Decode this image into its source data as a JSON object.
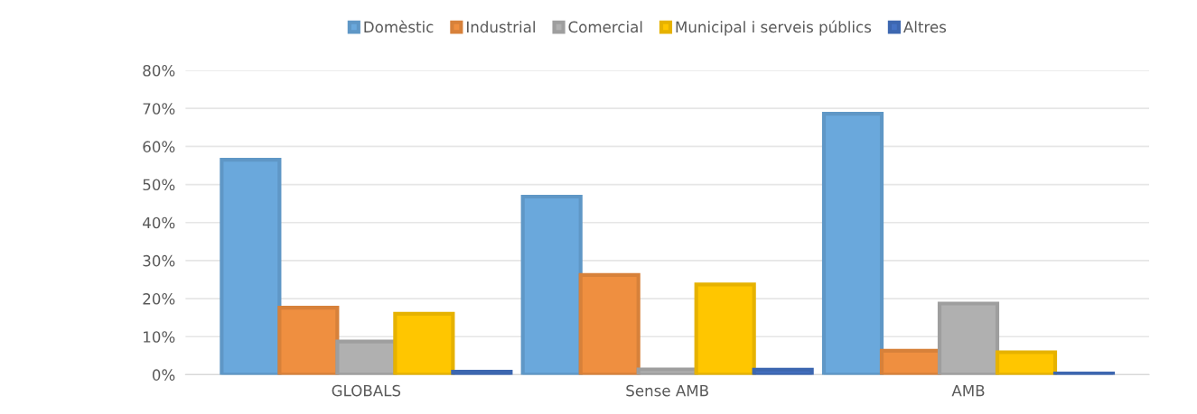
{
  "chart_data": {
    "type": "bar",
    "categories": [
      "GLOBALS",
      "Sense AMB",
      "AMB"
    ],
    "series": [
      {
        "name": "Domèstic",
        "color": "#6aa8dc",
        "values": [
          56.5,
          46.8,
          68.6
        ]
      },
      {
        "name": "Industrial",
        "color": "#ef8f40",
        "values": [
          17.6,
          26.2,
          6.3
        ]
      },
      {
        "name": "Comercial",
        "color": "#b0b0b0",
        "values": [
          8.7,
          1.4,
          18.7
        ]
      },
      {
        "name": "Municipal i serveis públics",
        "color": "#ffc600",
        "values": [
          16.0,
          23.7,
          5.9
        ]
      },
      {
        "name": "Altres",
        "color": "#4472c4",
        "values": [
          0.8,
          1.3,
          0.3
        ]
      }
    ],
    "ylim": [
      0,
      80
    ],
    "yticks": [
      {
        "value": 0,
        "label": "0%"
      },
      {
        "value": 10,
        "label": "10%"
      },
      {
        "value": 20,
        "label": "20%"
      },
      {
        "value": 30,
        "label": "30%"
      },
      {
        "value": 40,
        "label": "40%"
      },
      {
        "value": 50,
        "label": "50%"
      },
      {
        "value": 60,
        "label": "60%"
      },
      {
        "value": 70,
        "label": "70%"
      },
      {
        "value": 80,
        "label": "80%"
      }
    ],
    "grid": "y",
    "legend": "top"
  }
}
